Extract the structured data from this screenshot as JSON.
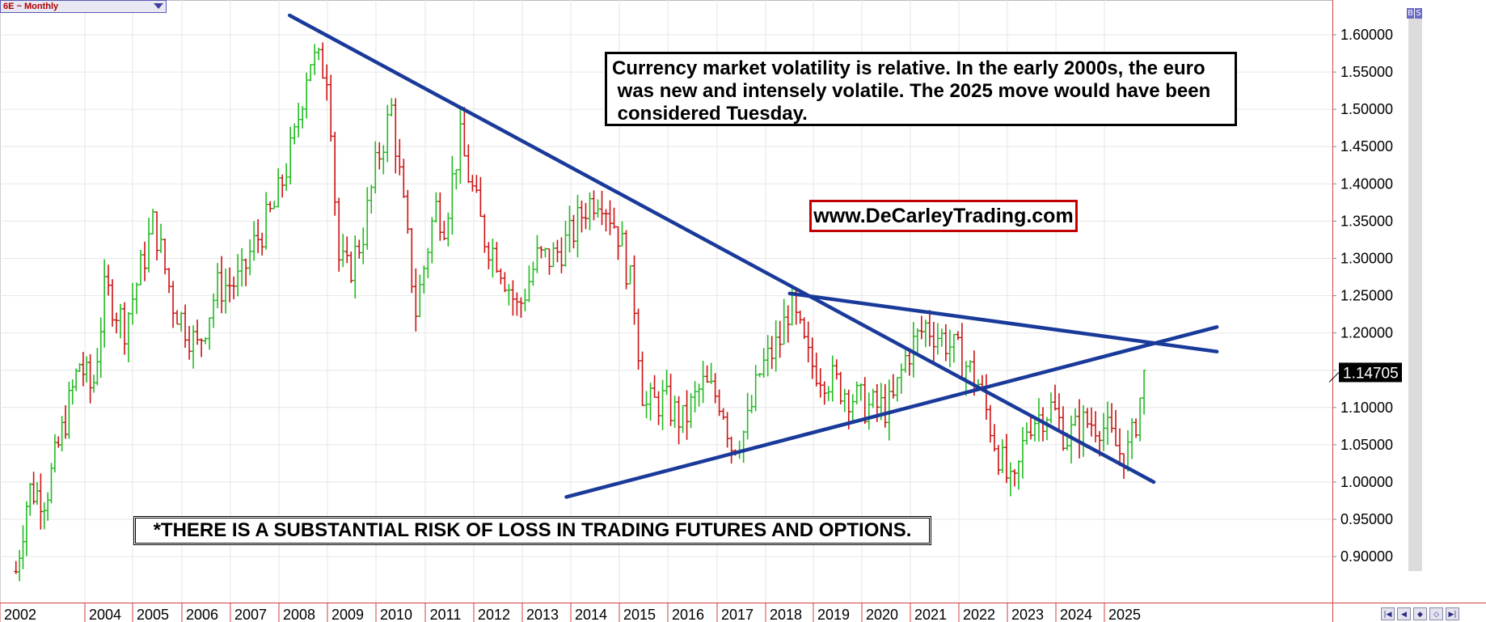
{
  "header": {
    "symbol_label": "6E ~ Monthly"
  },
  "annotations": {
    "note_lines": [
      "Currency market volatility is relative. In the early 2000s, the euro",
      " was new and intensely volatile. The 2025 move would have been",
      " considered Tuesday."
    ],
    "website": "www.DeCarleyTrading.com",
    "risk_disclaimer": "*THERE IS A SUBSTANTIAL RISK OF LOSS IN TRADING FUTURES AND OPTIONS."
  },
  "icons": {
    "top_right": [
      "B",
      "S"
    ],
    "nav": [
      "navigate-first-icon",
      "navigate-prev-icon",
      "zoom-in-icon",
      "zoom-out-icon",
      "navigate-last-icon"
    ]
  },
  "colors": {
    "up_bar": "#22bb22",
    "down_bar": "#cc1111",
    "trendline": "#1a3a9a",
    "last_price_bg": "#000000",
    "frame": "#d04040",
    "grid": "#e6e6e6"
  },
  "chart_data": {
    "type": "ohlc",
    "title": "6E ~ Monthly",
    "interval": "monthly",
    "x_axis_labels": [
      "2002",
      "2004",
      "2005",
      "2006",
      "2007",
      "2008",
      "2009",
      "2010",
      "2011",
      "2012",
      "2013",
      "2014",
      "2015",
      "2016",
      "2017",
      "2018",
      "2019",
      "2020",
      "2021",
      "2022",
      "2023",
      "2024",
      "2025"
    ],
    "y_axis_labels": [
      "1.60000",
      "1.55000",
      "1.50000",
      "1.45000",
      "1.40000",
      "1.35000",
      "1.30000",
      "1.25000",
      "1.20000",
      "1.15000",
      "1.10000",
      "1.05000",
      "1.00000",
      "0.95000",
      "0.90000"
    ],
    "ylim": [
      0.87,
      1.63
    ],
    "y_axis_position": "right",
    "grid": true,
    "last_price": 1.14705,
    "last_price_label": "1.14705",
    "approx_monthly_close": [
      [
        2001.9,
        0.88
      ],
      [
        2002.2,
        0.99
      ],
      [
        2002.6,
        0.98
      ],
      [
        2003.0,
        1.07
      ],
      [
        2003.4,
        1.16
      ],
      [
        2003.7,
        1.12
      ],
      [
        2004.0,
        1.26
      ],
      [
        2004.4,
        1.21
      ],
      [
        2004.8,
        1.3
      ],
      [
        2005.0,
        1.35
      ],
      [
        2005.4,
        1.24
      ],
      [
        2005.9,
        1.18
      ],
      [
        2006.3,
        1.26
      ],
      [
        2006.8,
        1.27
      ],
      [
        2007.0,
        1.31
      ],
      [
        2007.5,
        1.37
      ],
      [
        2007.9,
        1.46
      ],
      [
        2008.2,
        1.57
      ],
      [
        2008.6,
        1.55
      ],
      [
        2008.8,
        1.3
      ],
      [
        2009.0,
        1.28
      ],
      [
        2009.3,
        1.33
      ],
      [
        2009.6,
        1.43
      ],
      [
        2009.9,
        1.5
      ],
      [
        2010.4,
        1.23
      ],
      [
        2010.8,
        1.37
      ],
      [
        2011.0,
        1.35
      ],
      [
        2011.3,
        1.46
      ],
      [
        2011.8,
        1.33
      ],
      [
        2012.1,
        1.3
      ],
      [
        2012.5,
        1.23
      ],
      [
        2012.9,
        1.3
      ],
      [
        2013.2,
        1.3
      ],
      [
        2013.6,
        1.33
      ],
      [
        2013.9,
        1.37
      ],
      [
        2014.2,
        1.39
      ],
      [
        2014.6,
        1.33
      ],
      [
        2014.9,
        1.24
      ],
      [
        2015.1,
        1.1
      ],
      [
        2015.5,
        1.11
      ],
      [
        2015.9,
        1.08
      ],
      [
        2016.3,
        1.13
      ],
      [
        2016.7,
        1.11
      ],
      [
        2016.9,
        1.05
      ],
      [
        2017.2,
        1.07
      ],
      [
        2017.5,
        1.15
      ],
      [
        2017.9,
        1.19
      ],
      [
        2018.1,
        1.24
      ],
      [
        2018.5,
        1.16
      ],
      [
        2018.9,
        1.14
      ],
      [
        2019.3,
        1.12
      ],
      [
        2019.7,
        1.1
      ],
      [
        2020.2,
        1.1
      ],
      [
        2020.5,
        1.17
      ],
      [
        2020.9,
        1.21
      ],
      [
        2021.3,
        1.19
      ],
      [
        2021.7,
        1.16
      ],
      [
        2022.0,
        1.13
      ],
      [
        2022.3,
        1.06
      ],
      [
        2022.7,
        0.98
      ],
      [
        2023.0,
        1.08
      ],
      [
        2023.5,
        1.1
      ],
      [
        2023.8,
        1.06
      ],
      [
        2024.2,
        1.08
      ],
      [
        2024.5,
        1.08
      ],
      [
        2024.9,
        1.04
      ],
      [
        2025.1,
        1.04
      ],
      [
        2025.4,
        1.14
      ],
      [
        2025.45,
        1.147
      ]
    ],
    "trendlines": [
      {
        "from": [
          2007.8,
          1.626
        ],
        "to": [
          2025.6,
          1.0
        ]
      },
      {
        "from": [
          2018.1,
          1.253
        ],
        "to": [
          2026.9,
          1.175
        ]
      },
      {
        "from": [
          2013.5,
          0.98
        ],
        "to": [
          2026.9,
          1.208
        ]
      }
    ]
  }
}
